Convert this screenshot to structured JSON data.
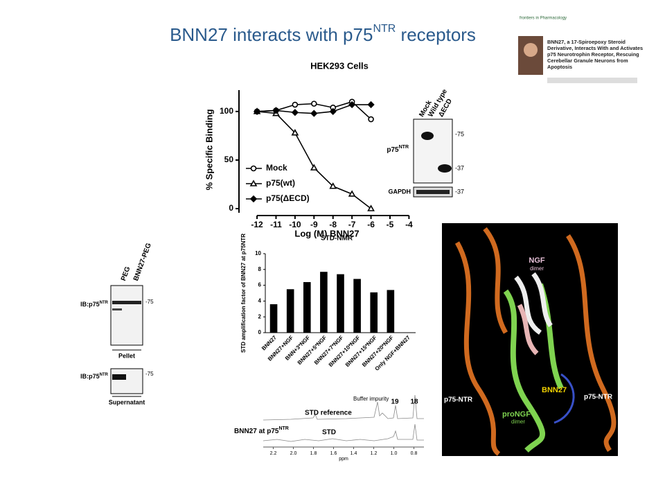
{
  "title": {
    "before": "BNN27 interacts with p75",
    "sup": "NTR",
    "after": " receptors"
  },
  "paper": {
    "journal": "frontiers in Pharmacology",
    "title": "BNN27, a 17-Spiroepoxy Steroid Derivative, Interacts With and Activates p75 Neurotrophin Receptor, Rescuing Cerebellar Granule Neurons from Apoptosis"
  },
  "chart_data": [
    {
      "type": "line",
      "title": "HEK293 Cells",
      "x_label": "Log (M) BNN27",
      "y_label": "% Specific Binding",
      "x": [
        -12,
        -11,
        -10,
        -9,
        -8,
        -7,
        -6
      ],
      "xlim": [
        -12.95,
        -3.65
      ],
      "xticks": [
        -12,
        -11,
        -10,
        -9,
        -8,
        -7,
        -6,
        -5,
        -4
      ],
      "ylim": [
        0,
        122
      ],
      "yticks": [
        0,
        50,
        100
      ],
      "series": [
        {
          "name": "Mock",
          "marker": "circle",
          "color": "#000000",
          "values": [
            100,
            101,
            107,
            108,
            104,
            110,
            92
          ]
        },
        {
          "name": "p75(wt)",
          "marker": "triangle",
          "color": "#000000",
          "values": [
            100,
            98,
            78,
            42,
            23,
            15,
            0
          ]
        },
        {
          "name": "p75(ΔECD)",
          "marker": "diamond",
          "color": "#000000",
          "values": [
            100,
            101,
            99,
            98,
            100,
            107,
            107
          ]
        }
      ]
    },
    {
      "type": "bar",
      "title": "STD-NMR",
      "y_label": "STD amplification factor of BNN27 at p75NTR",
      "categories": [
        "BNN27",
        "BNN27+NGF",
        "BNN+3*NGF",
        "BNN27+5*NGF",
        "BNN27+7*NGF",
        "BNN27+10*NGF",
        "BNN27+15*NGF",
        "BNN27+20*NGF",
        "Only NGF+BNN27"
      ],
      "values": [
        3.6,
        5.5,
        6.4,
        7.7,
        7.4,
        6.8,
        5.1,
        5.4,
        0
      ],
      "color": "#000000",
      "ylim": [
        0,
        10
      ],
      "yticks": [
        0,
        2,
        4,
        6,
        8,
        10
      ]
    }
  ],
  "blot_hek": {
    "lanes": [
      "Mock",
      "Wild type",
      "ΔECD"
    ],
    "label": "p75",
    "label_sup": "NTR",
    "gapdh": "GAPDH",
    "markers": [
      "-75",
      "-37",
      "-37"
    ]
  },
  "blot_peg": {
    "lanes": [
      "PEG",
      "BNN27-PEG"
    ],
    "ib": "IB:p75",
    "ib_sup": "NTR",
    "marker_top": "-75",
    "pellet": "Pellet",
    "ib2": "IB:p75",
    "ib2_sup": "NTR",
    "marker_bottom": "-75",
    "supernatant": "Supernatant"
  },
  "nmr": {
    "reference": "STD reference",
    "buffer": "Buffer impurity",
    "peaks": [
      "19",
      "18"
    ],
    "sample": "BNN27 at p75",
    "sample_sup": "NTR",
    "std": "STD",
    "unit": "ppm",
    "xlim": [
      2.3,
      0.7
    ],
    "xticks": [
      2.2,
      {
        "value": 2,
        "label": "2.0"
      },
      1.8,
      1.6,
      1.4,
      1.2,
      {
        "value": 1,
        "label": "1.0"
      },
      0.8
    ]
  },
  "structure": {
    "ngf": "NGF",
    "ngf_dimer": "dimer",
    "p75_left": "p75-NTR",
    "p75_right": "p75-NTR",
    "bnn27": "BNN27",
    "prongf": "proNGF",
    "prongf_dimer": "dimer"
  }
}
